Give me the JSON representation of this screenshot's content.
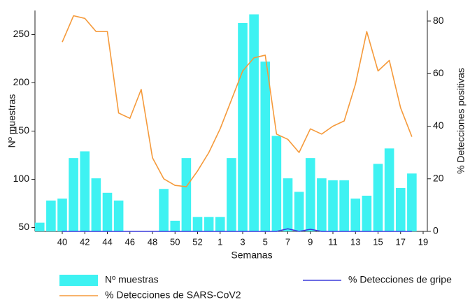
{
  "chart_data": {
    "type": "bar",
    "x_label": "Semanas",
    "y_label": "Nº muestras",
    "y2_label": "% Detecciones positivas",
    "categories": [
      null,
      null,
      "40",
      null,
      "42",
      null,
      "44",
      null,
      "46",
      null,
      "48",
      null,
      "50",
      null,
      "52",
      null,
      "1",
      null,
      "3",
      null,
      "5",
      null,
      "7",
      null,
      "9",
      null,
      "11",
      null,
      "13",
      null,
      "15",
      null,
      "17",
      null,
      "19"
    ],
    "series": [
      {
        "name": "Nº muestras",
        "type": "bar",
        "color": "#3ef2f2",
        "values": [
          55,
          78,
          80,
          122,
          129,
          101,
          86,
          78,
          null,
          null,
          null,
          90,
          57,
          122,
          61,
          61,
          61,
          122,
          262,
          271,
          222,
          145,
          101,
          87,
          122,
          101,
          99,
          99,
          80,
          83,
          116,
          132,
          91,
          106,
          null
        ]
      },
      {
        "name": "% Detecciones de gripe",
        "type": "line",
        "axis": "y2",
        "color": "#3b3bdc",
        "values": [
          null,
          null,
          0,
          0,
          0,
          0,
          0,
          0,
          0,
          0,
          0,
          0,
          0,
          0,
          0,
          0,
          0,
          0,
          0,
          0,
          0,
          0,
          1,
          0,
          0.8,
          0,
          0,
          0,
          0,
          0,
          0,
          0,
          0,
          0,
          null
        ]
      },
      {
        "name": "% Detecciones de SARS-CoV2",
        "type": "line",
        "axis": "y2",
        "color": "#f59a3b",
        "values": [
          null,
          null,
          72,
          82,
          81,
          76,
          76,
          45,
          43,
          54,
          28,
          20,
          17.5,
          17,
          23,
          30,
          39,
          50,
          61,
          66,
          67,
          37,
          35,
          30,
          39,
          37,
          40,
          42,
          56,
          76,
          61,
          65,
          47,
          36,
          null
        ]
      }
    ],
    "ylim": [
      46,
      275
    ],
    "yticks": [
      50,
      100,
      150,
      200,
      250
    ],
    "y2lim": [
      0,
      84
    ],
    "y2ticks": [
      0,
      20,
      40,
      60,
      80
    ],
    "legend": "bottom"
  }
}
